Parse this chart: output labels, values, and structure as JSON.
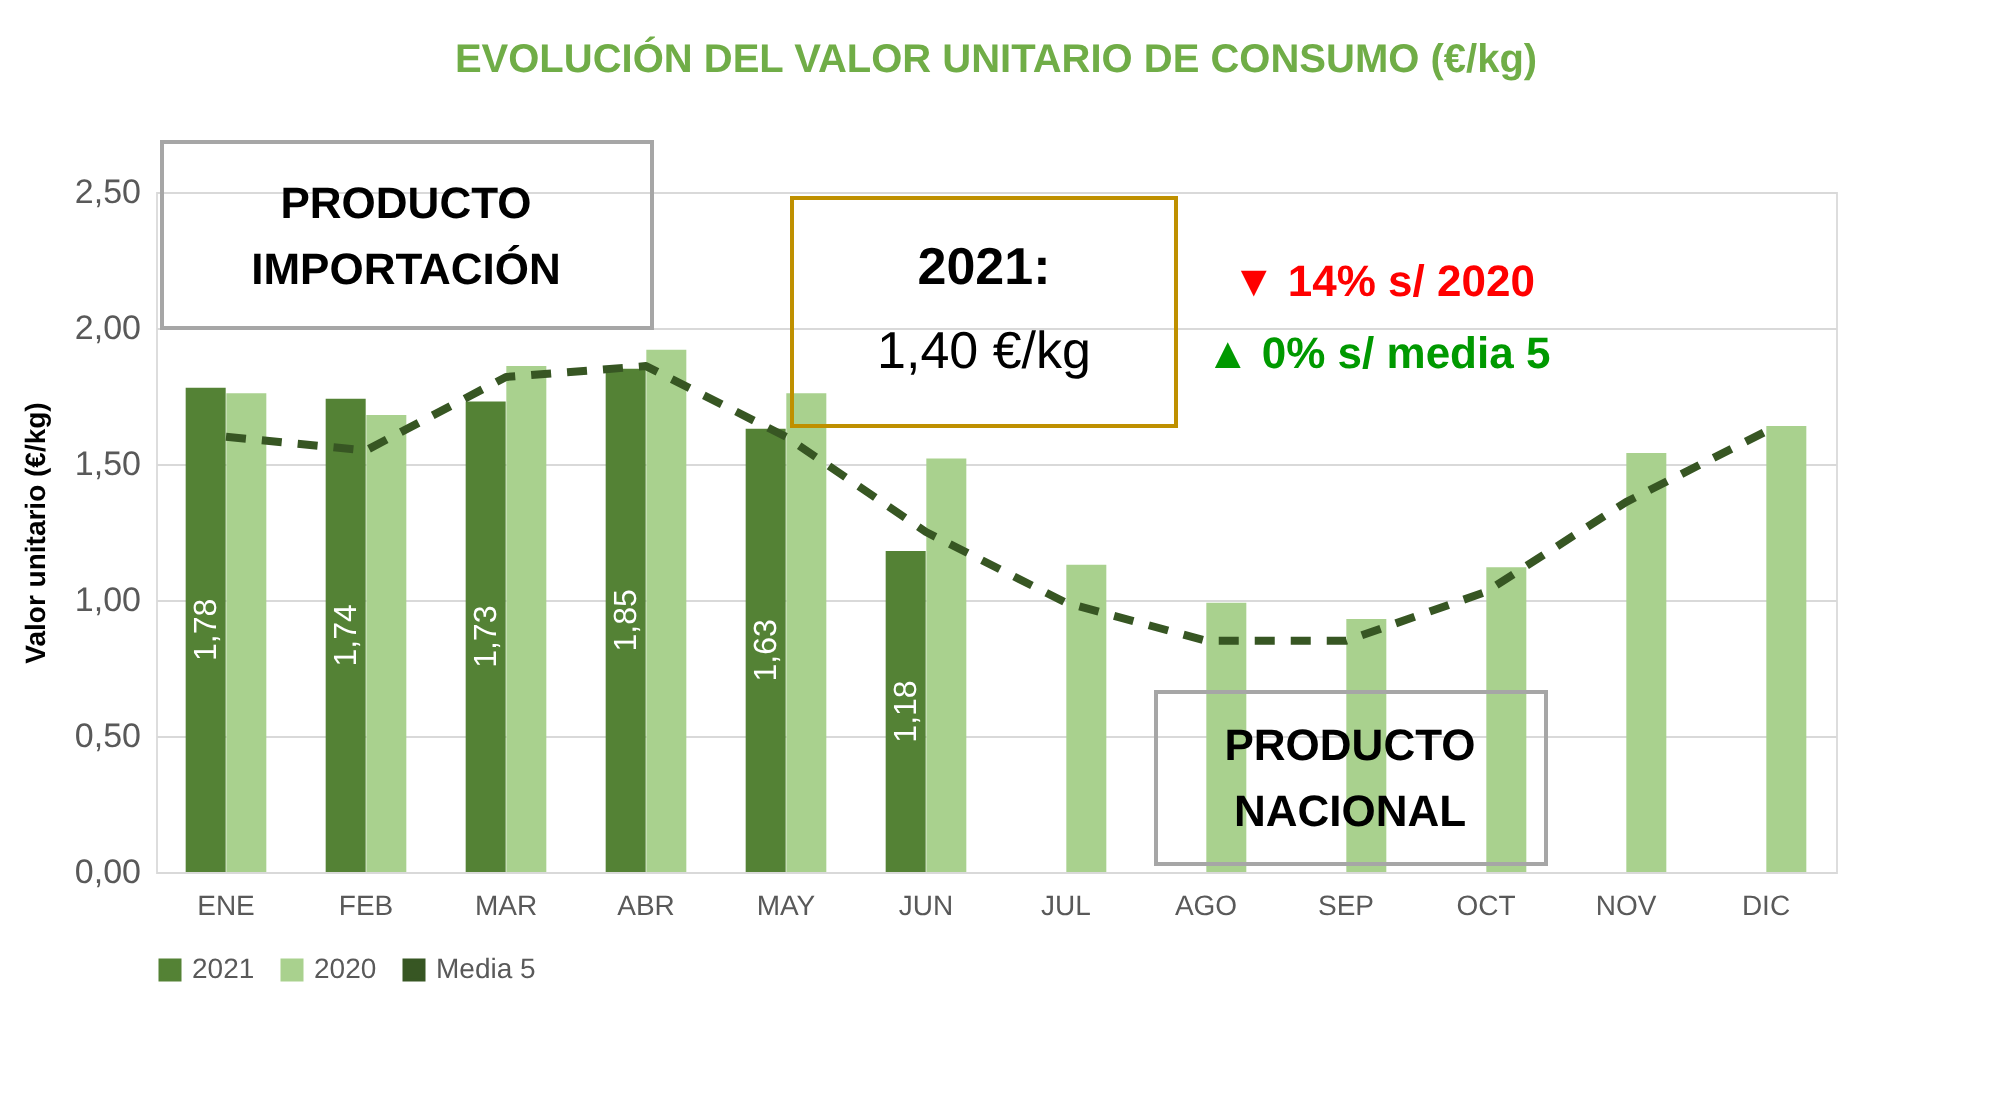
{
  "chart_data": {
    "type": "bar",
    "title": "EVOLUCIÓN DEL VALOR UNITARIO DE CONSUMO (€/kg)",
    "ylabel": "Valor unitario (€/kg)",
    "categories": [
      "ENE",
      "FEB",
      "MAR",
      "ABR",
      "MAY",
      "JUN",
      "JUL",
      "AGO",
      "SEP",
      "OCT",
      "NOV",
      "DIC"
    ],
    "series": [
      {
        "name": "2021",
        "color": "#548235",
        "values": [
          1.78,
          1.74,
          1.73,
          1.85,
          1.63,
          1.18,
          null,
          null,
          null,
          null,
          null,
          null
        ],
        "value_labels": [
          "1,78",
          "1,74",
          "1,73",
          "1,85",
          "1,63",
          "1,18",
          null,
          null,
          null,
          null,
          null,
          null
        ]
      },
      {
        "name": "2020",
        "color": "#a9d18e",
        "values": [
          1.76,
          1.68,
          1.86,
          1.92,
          1.76,
          1.52,
          1.13,
          0.99,
          0.93,
          1.12,
          1.54,
          1.64
        ]
      },
      {
        "name": "Media 5",
        "type": "line",
        "line_style": "dashed",
        "color": "#375623",
        "values": [
          1.6,
          1.55,
          1.82,
          1.86,
          1.6,
          1.25,
          0.99,
          0.85,
          0.85,
          1.03,
          1.36,
          1.62
        ]
      }
    ],
    "ylim": [
      0,
      2.5
    ],
    "yticks": [
      {
        "value": 0,
        "label": "0,00"
      },
      {
        "value": 0.5,
        "label": "0,50"
      },
      {
        "value": 1,
        "label": "1,00"
      },
      {
        "value": 1.5,
        "label": "1,50"
      },
      {
        "value": 2,
        "label": "2,00"
      },
      {
        "value": 2.5,
        "label": "2,50"
      }
    ],
    "grid": "y",
    "legend": "bottom",
    "annotations": [
      "PRODUCTO\nIMPORTACIÓN",
      "2021:\n1,40 €/kg",
      "▼ 14% s/ 2020",
      "▲ 0% s/ media 5",
      "PRODUCTO\nNACIONAL"
    ]
  }
}
